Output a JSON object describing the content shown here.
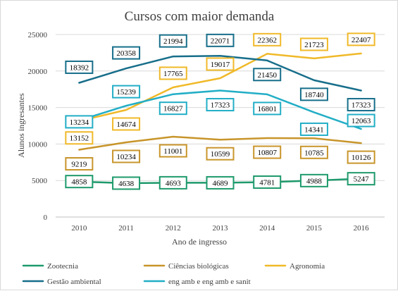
{
  "chart_data": {
    "type": "line",
    "title": "Cursos com maior demanda",
    "xlabel": "Ano de ingresso",
    "ylabel": "Alunos ingresantes",
    "x": [
      2010,
      2011,
      2012,
      2013,
      2014,
      2015,
      2016
    ],
    "ylim": [
      0,
      25000
    ],
    "yticks": [
      0,
      5000,
      10000,
      15000,
      20000,
      25000
    ],
    "grid": true,
    "legend_position": "bottom",
    "series": [
      {
        "name": "Zootecnia",
        "color": "#1e9a6c",
        "values": [
          4858,
          4638,
          4693,
          4689,
          4781,
          4988,
          5247
        ]
      },
      {
        "name": "Ciências biológicas",
        "color": "#c8952b",
        "values": [
          9219,
          10234,
          11001,
          10599,
          10807,
          10785,
          10126
        ]
      },
      {
        "name": "Agronomia",
        "color": "#f0b929",
        "values": [
          13152,
          14674,
          17765,
          19017,
          22362,
          21723,
          22407
        ]
      },
      {
        "name": "Gestão ambiental",
        "color": "#176e8a",
        "values": [
          18392,
          20358,
          21994,
          22071,
          21450,
          18740,
          17323
        ]
      },
      {
        "name": "eng amb e eng amb e sanit",
        "color": "#22aec6",
        "values": [
          13234,
          15239,
          16827,
          17323,
          16801,
          14341,
          12063
        ]
      }
    ]
  }
}
